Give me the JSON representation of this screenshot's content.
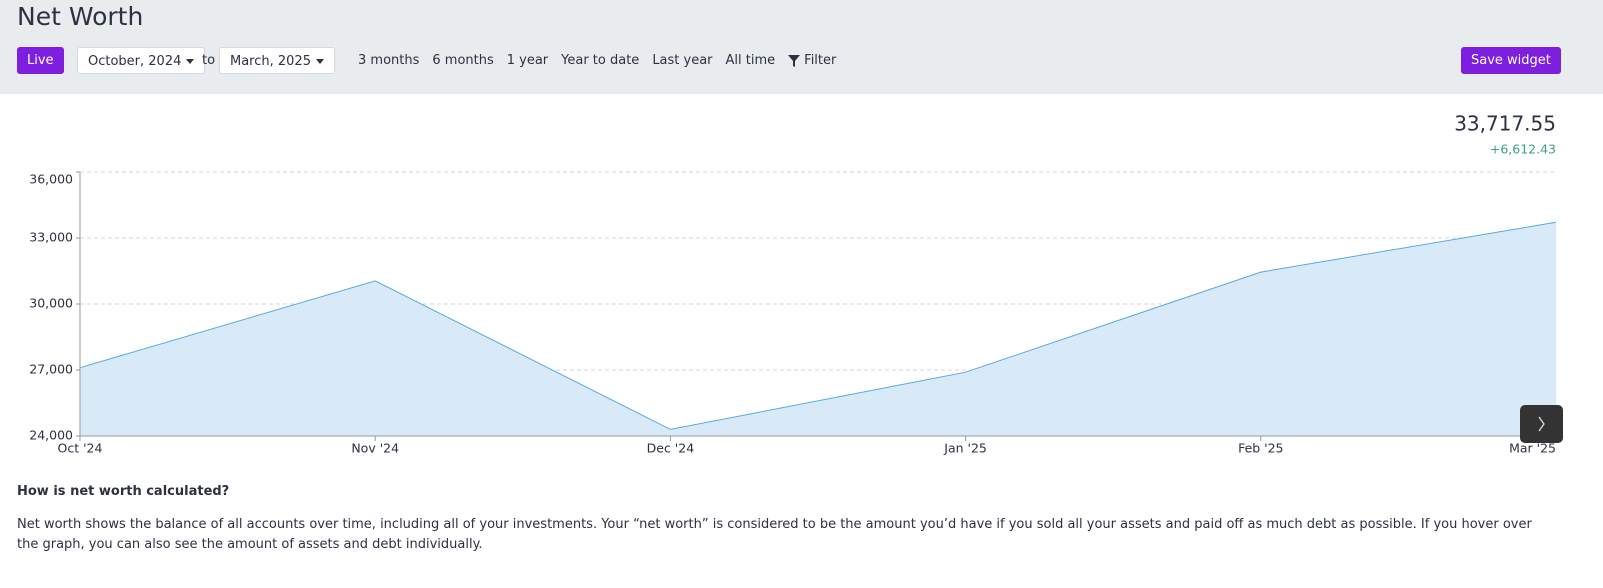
{
  "header": {
    "title": "Net Worth",
    "live_button": "Live",
    "start_date": "October, 2024",
    "range_separator": "to",
    "end_date": "March, 2025",
    "presets": [
      "3 months",
      "6 months",
      "1 year",
      "Year to date",
      "Last year",
      "All time"
    ],
    "filter": "Filter",
    "save_button": "Save widget"
  },
  "summary": {
    "total": "33,717.55",
    "change": "+6,612.43"
  },
  "chart_data": {
    "type": "area",
    "categories": [
      "Oct '24",
      "Nov '24",
      "Dec '24",
      "Jan '25",
      "Feb '25",
      "Mar '25"
    ],
    "values": [
      27105.12,
      31050,
      24300,
      26900,
      31450,
      33717.55
    ],
    "color": "#5aa9dc",
    "fill_color": "#d8eaf8",
    "ylim": [
      24000,
      36000
    ],
    "yticks": [
      {
        "value": 24000,
        "label": "24,000"
      },
      {
        "value": 27000,
        "label": "27,000"
      },
      {
        "value": 30000,
        "label": "30,000"
      },
      {
        "value": 33000,
        "label": "33,000"
      },
      {
        "value": 36000,
        "label": "36,000"
      }
    ],
    "grid": true
  },
  "explanation": {
    "heading": "How is net worth calculated?",
    "text": "Net worth shows the balance of all accounts over time, including all of your investments. Your “net worth” is considered to be the amount you’d have if you sold all your assets and paid off as much debt as possible. If you hover over the graph, you can also see the amount of assets and debt individually."
  }
}
